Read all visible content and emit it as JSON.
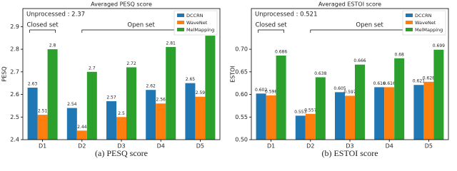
{
  "chart_data": [
    {
      "type": "bar",
      "title": "Averaged PESQ score",
      "y_label": "PESQ",
      "caption": "(a) PESQ score",
      "categories": [
        "D1",
        "D2",
        "D3",
        "D4",
        "D5"
      ],
      "series": [
        {
          "name": "DCCRN",
          "color": "#1f77b4",
          "values": [
            2.63,
            2.54,
            2.57,
            2.62,
            2.65
          ]
        },
        {
          "name": "WaveNet",
          "color": "#ff7f0e",
          "values": [
            2.51,
            2.44,
            2.5,
            2.56,
            2.59
          ]
        },
        {
          "name": "MelMapping",
          "color": "#2ca02c",
          "values": [
            2.8,
            2.7,
            2.72,
            2.81,
            2.86
          ]
        }
      ],
      "ylim": [
        2.4,
        2.98
      ],
      "yticks": [
        2.4,
        2.5,
        2.6,
        2.7,
        2.8,
        2.9
      ],
      "annotations": [
        "Unprocessed : 2.37",
        "Closed set",
        "Open set"
      ],
      "legend": "upper right"
    },
    {
      "type": "bar",
      "title": "Averaged ESTOI score",
      "y_label": "ESTOI",
      "caption": "(b) ESTOI score",
      "categories": [
        "D1",
        "D2",
        "D3",
        "D4",
        "D5"
      ],
      "series": [
        {
          "name": "DCCRN",
          "color": "#1f77b4",
          "values": [
            0.602,
            0.553,
            0.605,
            0.616,
            0.621
          ]
        },
        {
          "name": "WaveNet",
          "color": "#ff7f0e",
          "values": [
            0.598,
            0.557,
            0.597,
            0.616,
            0.628
          ]
        },
        {
          "name": "MelMapping",
          "color": "#2ca02c",
          "values": [
            0.686,
            0.638,
            0.666,
            0.68,
            0.699
          ]
        }
      ],
      "ylim": [
        0.5,
        0.79
      ],
      "yticks": [
        {
          "value": 0.5,
          "label": "0.50"
        },
        0.55,
        {
          "value": 0.6,
          "label": "0.60"
        },
        0.65,
        {
          "value": 0.7,
          "label": "0.70"
        }
      ],
      "annotations": [
        "Unprocessed : 0.521",
        "Closed set",
        "Open set"
      ],
      "legend": "upper right"
    }
  ]
}
